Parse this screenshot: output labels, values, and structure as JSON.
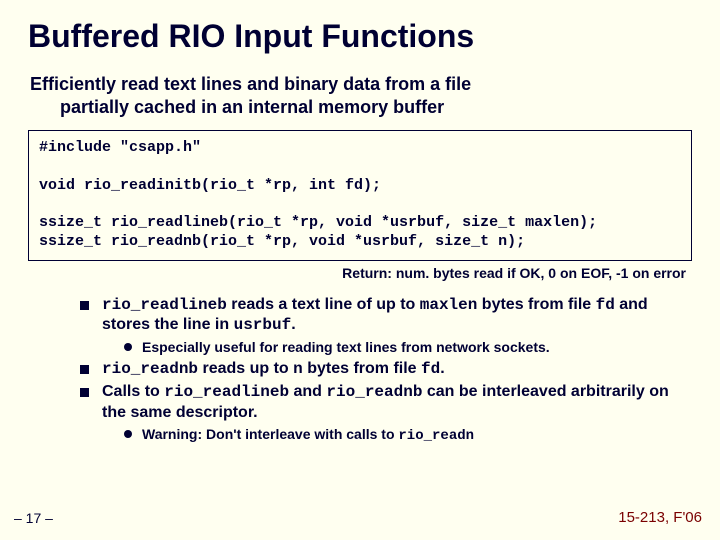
{
  "colors": {
    "background": "#fffff0",
    "text": "#000033",
    "footer_right": "#7a0000",
    "border": "#000033"
  },
  "typography": {
    "title_fontsize": 32,
    "subtitle_fontsize": 18,
    "code_fontsize": 15,
    "return_fontsize": 14,
    "bullet1_fontsize": 16,
    "bullet2_fontsize": 14,
    "footer_fontsize": 14
  },
  "title": "Buffered RIO Input Functions",
  "subtitle_line1": "Efficiently read text lines and binary data from a file",
  "subtitle_line2": "partially cached in an internal memory buffer",
  "code_lines": "#include \"csapp.h\"\n\nvoid rio_readinitb(rio_t *rp, int fd);\n\nssize_t rio_readlineb(rio_t *rp, void *usrbuf, size_t maxlen);\nssize_t rio_readnb(rio_t *rp, void *usrbuf, size_t n);",
  "return_note": "Return: num. bytes read if OK, 0 on EOF, -1 on error",
  "bullets": {
    "b1": {
      "p1": "rio_readlineb",
      "p2": " reads a text line of up to ",
      "p3": "maxlen",
      "p4": " bytes from file ",
      "p5": "fd",
      "p6": " and stores the line in ",
      "p7": "usrbuf",
      "p8": "."
    },
    "b1s": "Especially useful for reading text lines from network sockets.",
    "b2": {
      "p1": "rio_readnb",
      "p2": " reads up to ",
      "p3": "n",
      "p4": " bytes from file ",
      "p5": "fd",
      "p6": "."
    },
    "b3": {
      "p1": "Calls to ",
      "p2": "rio_readlineb",
      "p3": " and ",
      "p4": "rio_readnb",
      "p5": " can be interleaved arbitrarily on the same descriptor."
    },
    "b3s": {
      "p1": "Warning: Don't interleave with calls to ",
      "p2": "rio_readn"
    }
  },
  "footer": {
    "left": "– 17 –",
    "right": "15-213, F'06"
  }
}
